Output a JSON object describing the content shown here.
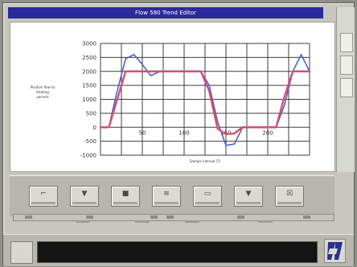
{
  "window": {
    "title": "Flow 580 Trend Editor"
  },
  "chart_data": {
    "type": "line",
    "x": [
      0,
      10,
      20,
      30,
      40,
      50,
      60,
      70,
      80,
      90,
      100,
      110,
      120,
      130,
      140,
      150,
      160,
      170,
      180,
      190,
      200,
      210,
      220,
      230,
      240,
      250
    ],
    "series": [
      {
        "name": "",
        "values": [
          0,
          10,
          1300,
          2450,
          2600,
          2250,
          1850,
          1980,
          2000,
          2000,
          2000,
          2000,
          2000,
          1500,
          200,
          -650,
          -600,
          0,
          0,
          0,
          0,
          0,
          800,
          2000,
          2600,
          2000
        ]
      },
      {
        "name": "",
        "values": [
          0,
          0,
          1000,
          2000,
          2000,
          2000,
          2000,
          2000,
          2000,
          2000,
          2000,
          2000,
          2000,
          1300,
          -50,
          -250,
          -220,
          0,
          0,
          0,
          0,
          0,
          1100,
          2000,
          2000,
          2000
        ]
      }
    ],
    "y_ticks": [
      "3000",
      "2500",
      "2000",
      "1500",
      "1000",
      "500",
      "0",
      "-500",
      "-1000"
    ],
    "x_ticks": [
      "50",
      "100",
      "150",
      "200"
    ],
    "ylim": [
      -1000,
      3000
    ],
    "xlim": [
      0,
      250
    ],
    "xlabel": "Sample interval (T)",
    "ylabel_lines": [
      "Positive flow to",
      "Heating",
      "percent"
    ],
    "grid": true,
    "colors": {
      "blue": "#4d63ca",
      "red": "#d84d72"
    }
  },
  "toolbar": {
    "buttons": [
      {
        "name": "insert-button",
        "glyph": "⌐"
      },
      {
        "name": "down-button",
        "glyph": "▼"
      },
      {
        "name": "move-button",
        "glyph": "■"
      },
      {
        "name": "scale-button",
        "glyph": "≡"
      },
      {
        "name": "record-button",
        "glyph": "▭"
      },
      {
        "name": "sort-button",
        "glyph": "▼"
      },
      {
        "name": "clear-button",
        "glyph": "☒"
      }
    ]
  }
}
